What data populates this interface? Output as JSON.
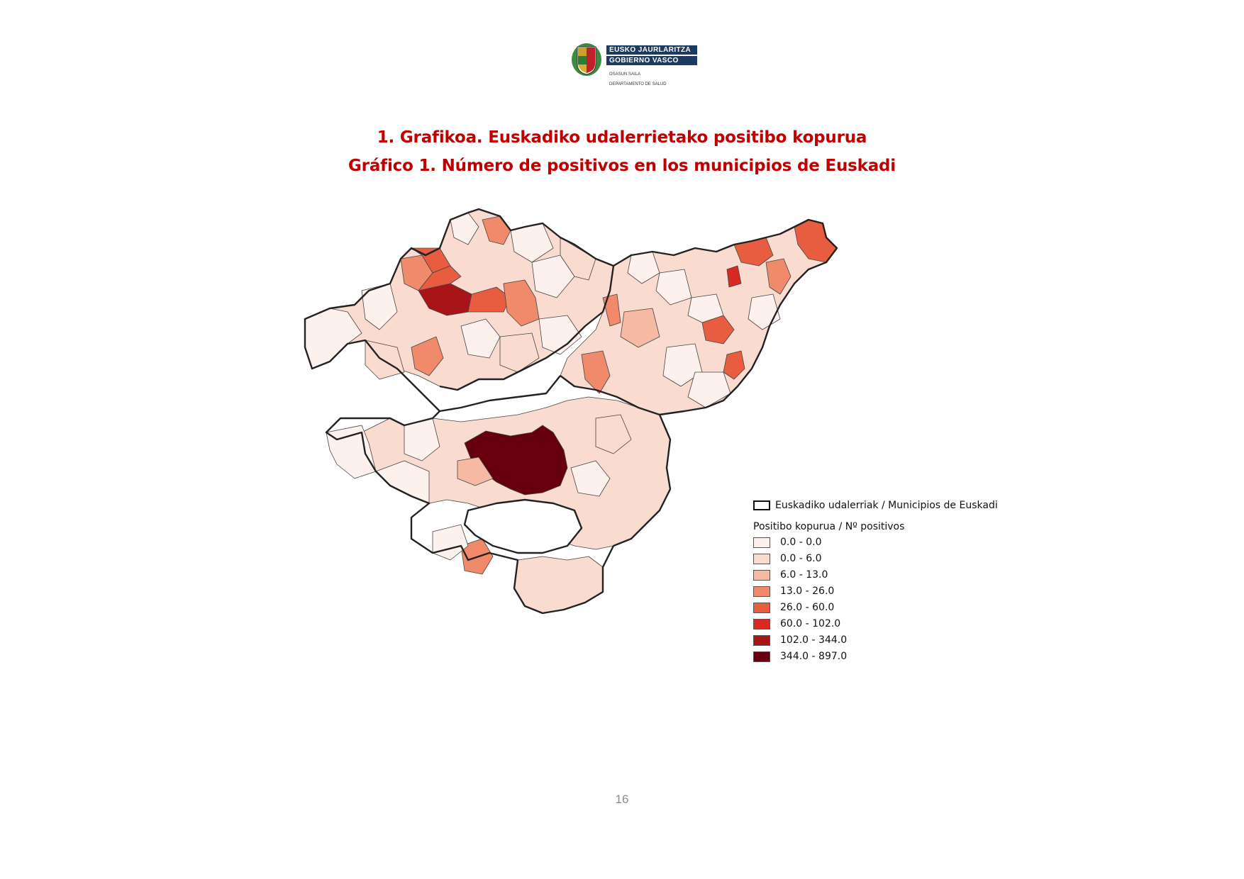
{
  "header": {
    "logo": {
      "line1": "EUSKO JAURLARITZA",
      "line2": "GOBIERNO VASCO",
      "dept1": "OSASUN SAILA",
      "dept2": "DEPARTAMENTO DE SALUD"
    }
  },
  "titles": {
    "eu": "1. Grafikoa. Euskadiko udalerrietako positibo kopurua",
    "es": "Gráfico 1. Número de positivos en los municipios de Euskadi"
  },
  "legend": {
    "outline_label": "Euskadiko udalerriak / Municipios de Euskadi",
    "title": "Positibo kopurua / Nº positivos",
    "classes": [
      {
        "label": "0.0 - 0.0",
        "color": "#fdf1ee"
      },
      {
        "label": "0.0 - 6.0",
        "color": "#f9dbd0"
      },
      {
        "label": "6.0 - 13.0",
        "color": "#f6b9a3"
      },
      {
        "label": "13.0 - 26.0",
        "color": "#f08a6b"
      },
      {
        "label": "26.0 - 60.0",
        "color": "#e85d40"
      },
      {
        "label": "60.0 - 102.0",
        "color": "#d92a22"
      },
      {
        "label": "102.0 - 344.0",
        "color": "#a81519"
      },
      {
        "label": "344.0 - 897.0",
        "color": "#67000d"
      }
    ]
  },
  "footer": {
    "page_number": "16"
  }
}
